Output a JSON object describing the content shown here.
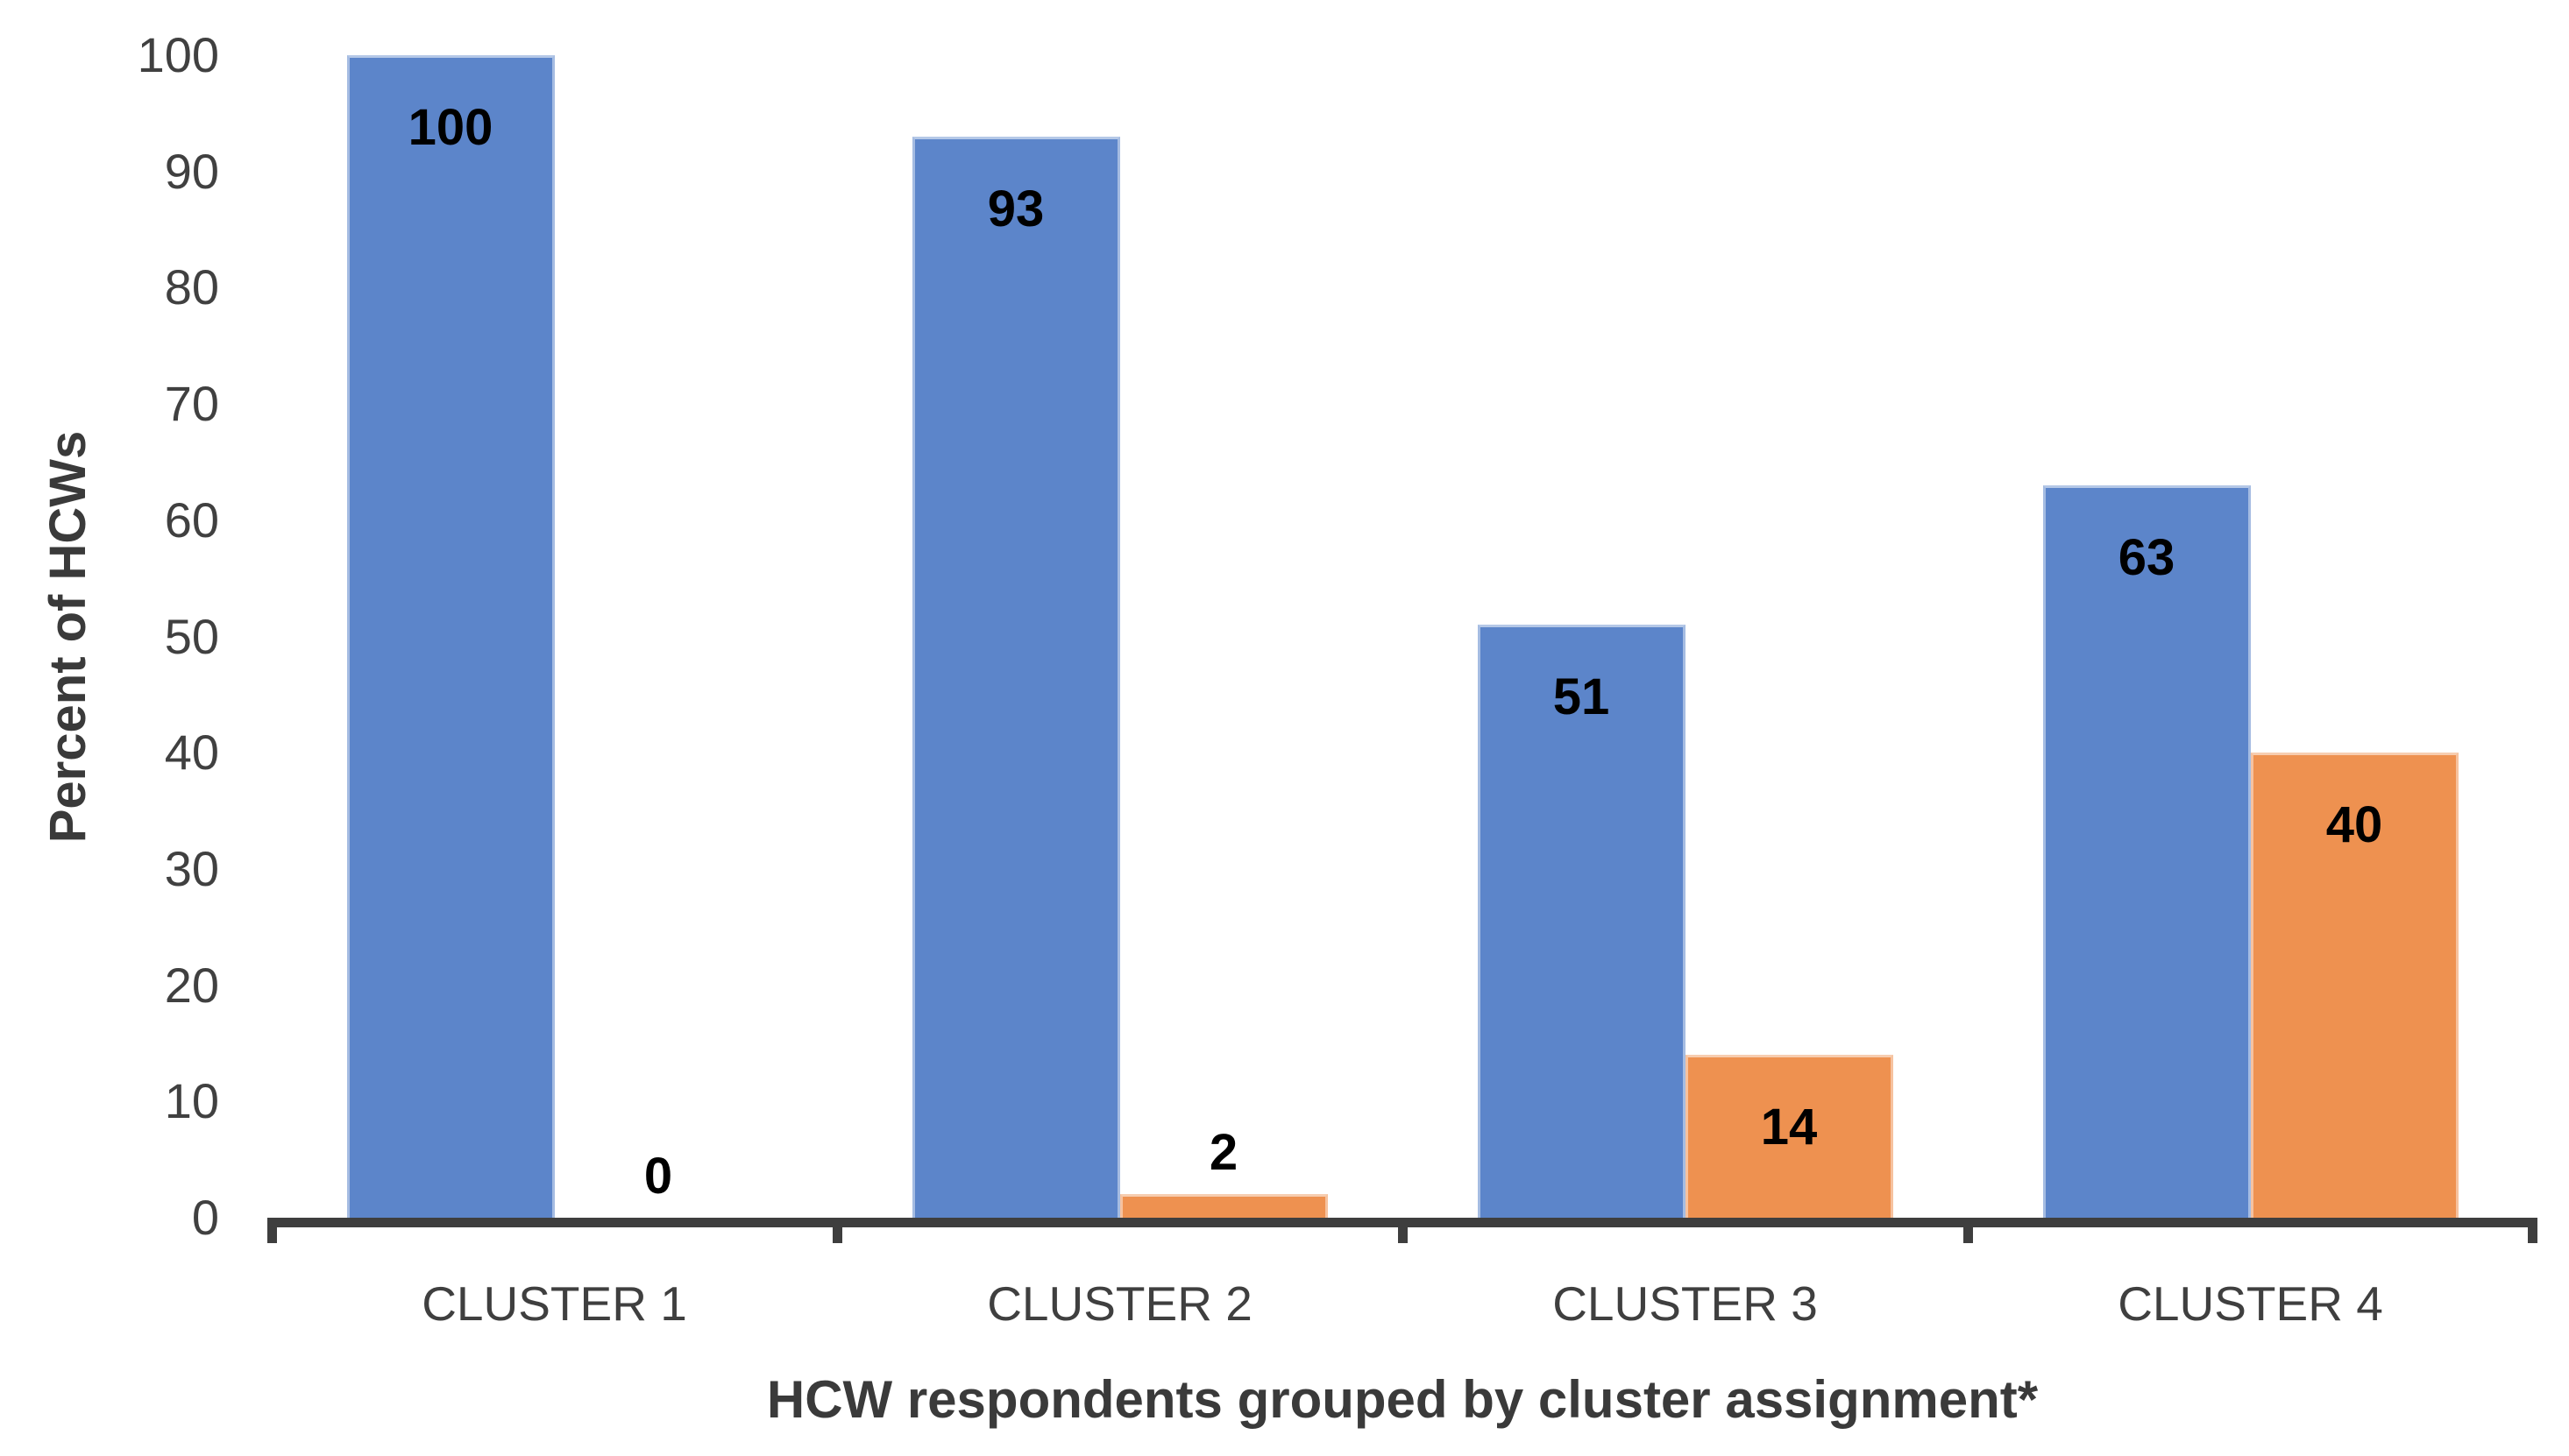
{
  "chart_data": {
    "type": "bar",
    "title": "",
    "categories": [
      "CLUSTER 1",
      "CLUSTER 2",
      "CLUSTER 3",
      "CLUSTER 4"
    ],
    "series": [
      {
        "name": "blue-series",
        "color": "#5C85CA",
        "values": [
          100,
          93,
          51,
          63
        ]
      },
      {
        "name": "orange-series",
        "color": "#EE9150",
        "values": [
          0,
          2,
          14,
          40
        ]
      }
    ],
    "data_labels": [
      [
        "100",
        "93",
        "51",
        "63"
      ],
      [
        "0",
        "2",
        "14",
        "40"
      ]
    ],
    "xlabel": "HCW respondents grouped by cluster assignment*",
    "ylabel": "Percent of HCWs",
    "ylim": [
      0,
      100
    ],
    "yticks": [
      "0",
      "10",
      "20",
      "30",
      "40",
      "50",
      "60",
      "70",
      "80",
      "90",
      "100"
    ],
    "grid": false,
    "legend": "none",
    "colors": {
      "axis_line": "#3e3e3e",
      "tick_text": "#404040",
      "category_text": "#3f3f3f",
      "title_text": "#3a3a3a",
      "data_label_text": "#000000",
      "background": "#ffffff"
    }
  }
}
